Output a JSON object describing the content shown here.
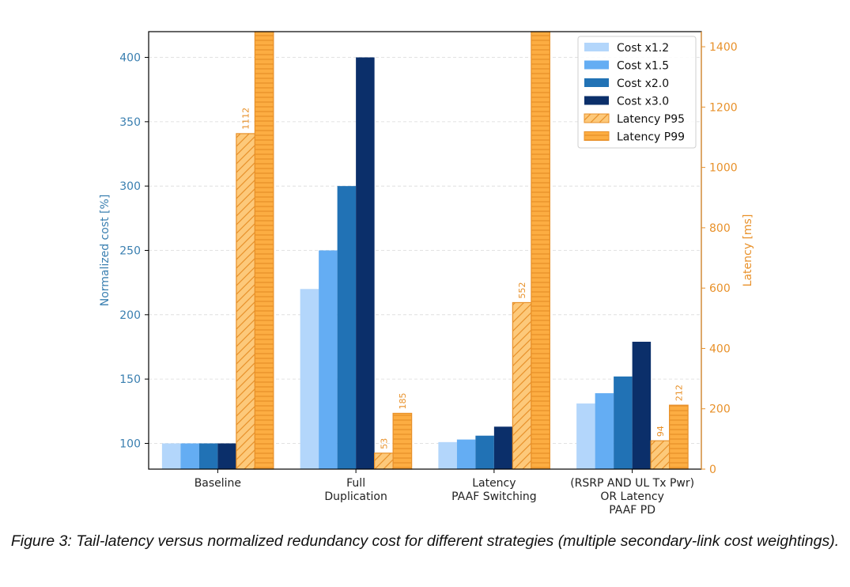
{
  "caption": "Figure 3: Tail-latency versus normalized redundancy cost for different strategies (multiple secondary-link cost weightings).",
  "colors": {
    "left_axis": "#3a7fb0",
    "right_axis": "#e8912a"
  },
  "chart_data": {
    "type": "bar",
    "categories": [
      [
        "Baseline"
      ],
      [
        "Full",
        "Duplication"
      ],
      [
        "Latency",
        "PAAF Switching"
      ],
      [
        "(RSRP AND UL Tx Pwr)",
        "OR Latency",
        "PAAF PD"
      ]
    ],
    "left_axis": {
      "label": "Normalized cost [%]",
      "ylim": [
        80,
        420
      ],
      "ticks": [
        100,
        150,
        200,
        250,
        300,
        350,
        400
      ]
    },
    "right_axis": {
      "label": "Latency [ms]",
      "ylim": [
        0,
        1450
      ],
      "ticks": [
        0,
        200,
        400,
        600,
        800,
        1000,
        1200,
        1400
      ]
    },
    "grid": true,
    "legend_position": "top-right",
    "series": [
      {
        "name": "Cost x1.2",
        "axis": "left",
        "color": "#b3d6fb",
        "style": "solid",
        "values": [
          100,
          220,
          101,
          131
        ]
      },
      {
        "name": "Cost x1.5",
        "axis": "left",
        "color": "#64adf3",
        "style": "solid",
        "values": [
          100,
          250,
          103,
          139
        ]
      },
      {
        "name": "Cost x2.0",
        "axis": "left",
        "color": "#2172b5",
        "style": "solid",
        "values": [
          100,
          300,
          106,
          152
        ]
      },
      {
        "name": "Cost x3.0",
        "axis": "left",
        "color": "#0b2f6a",
        "style": "solid",
        "values": [
          100,
          400,
          113,
          179
        ]
      },
      {
        "name": "Latency P95",
        "axis": "right",
        "color": "#fdc97a",
        "edge": "#e8912a",
        "style": "diagonal-hatch",
        "values": [
          1112,
          53,
          552,
          94
        ],
        "labels": [
          "1112",
          "53",
          "552",
          "94"
        ]
      },
      {
        "name": "Latency P99",
        "axis": "right",
        "color": "#fcad42",
        "edge": "#e8912a",
        "style": "horizontal-hatch",
        "values": [
          1450,
          185,
          1450,
          212
        ],
        "labels": [
          "",
          "185",
          "",
          "212"
        ]
      }
    ]
  }
}
